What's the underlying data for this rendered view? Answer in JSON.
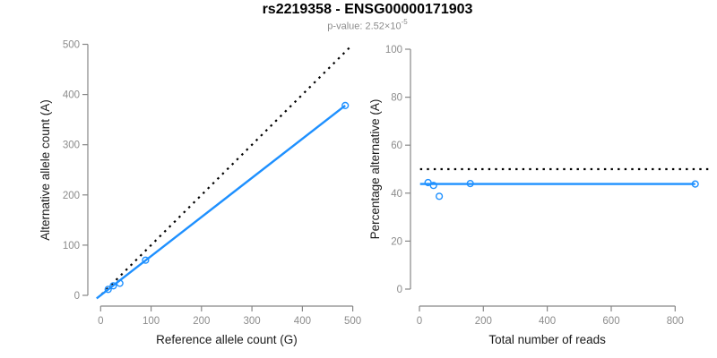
{
  "header": {
    "title": "rs2219358 - ENSG00000171903",
    "pvalue_prefix": "p-value: 2.52×10",
    "pvalue_exponent": "-5"
  },
  "colors": {
    "accent_blue": "#1E90FF",
    "dotted_line": "#000000",
    "axis_gray": "#878787",
    "tick_label_gray": "#8c8c8c",
    "title_black": "#000000",
    "background": "#ffffff"
  },
  "chart_data": [
    {
      "type": "scatter",
      "name": "allele-count-plot",
      "xlabel": "Reference allele count (G)",
      "ylabel": "Alternative allele count (A)",
      "xlim": [
        0,
        500
      ],
      "ylim": [
        0,
        500
      ],
      "xticks": [
        0,
        100,
        200,
        300,
        400,
        500
      ],
      "yticks": [
        0,
        100,
        200,
        300,
        400,
        500
      ],
      "grid": false,
      "legend": null,
      "point_color": "#1E90FF",
      "points": [
        [
          15,
          12
        ],
        [
          25,
          19
        ],
        [
          38,
          24
        ],
        [
          89,
          70
        ],
        [
          485,
          378
        ]
      ],
      "lines": [
        {
          "name": "identity-line",
          "style": "dotted",
          "color": "#000000",
          "x": [
            2,
            494
          ],
          "y": [
            2,
            494
          ]
        },
        {
          "name": "regression-line",
          "style": "solid",
          "color": "#1E90FF",
          "x": [
            -8,
            485
          ],
          "y": [
            -6,
            378
          ]
        }
      ]
    },
    {
      "type": "scatter",
      "name": "percentage-alternative-plot",
      "xlabel": "Total number of reads",
      "ylabel": "Percentage alternative (A)",
      "xlim": [
        0,
        900
      ],
      "ylim": [
        0,
        100
      ],
      "xticks": [
        0,
        200,
        400,
        600,
        800
      ],
      "yticks": [
        0,
        20,
        40,
        60,
        80,
        100
      ],
      "grid": false,
      "legend": null,
      "point_color": "#1E90FF",
      "points": [
        [
          27,
          44.4
        ],
        [
          44,
          43.2
        ],
        [
          62,
          38.7
        ],
        [
          159,
          44.0
        ],
        [
          863,
          43.8
        ]
      ],
      "lines": [
        {
          "name": "expected-50-percent-line",
          "style": "dotted",
          "color": "#000000",
          "x": [
            2,
            905
          ],
          "y": [
            50,
            50
          ]
        },
        {
          "name": "mean-percentage-line",
          "style": "solid",
          "color": "#1E90FF",
          "x": [
            2,
            863
          ],
          "y": [
            43.8,
            43.8
          ]
        }
      ]
    }
  ]
}
